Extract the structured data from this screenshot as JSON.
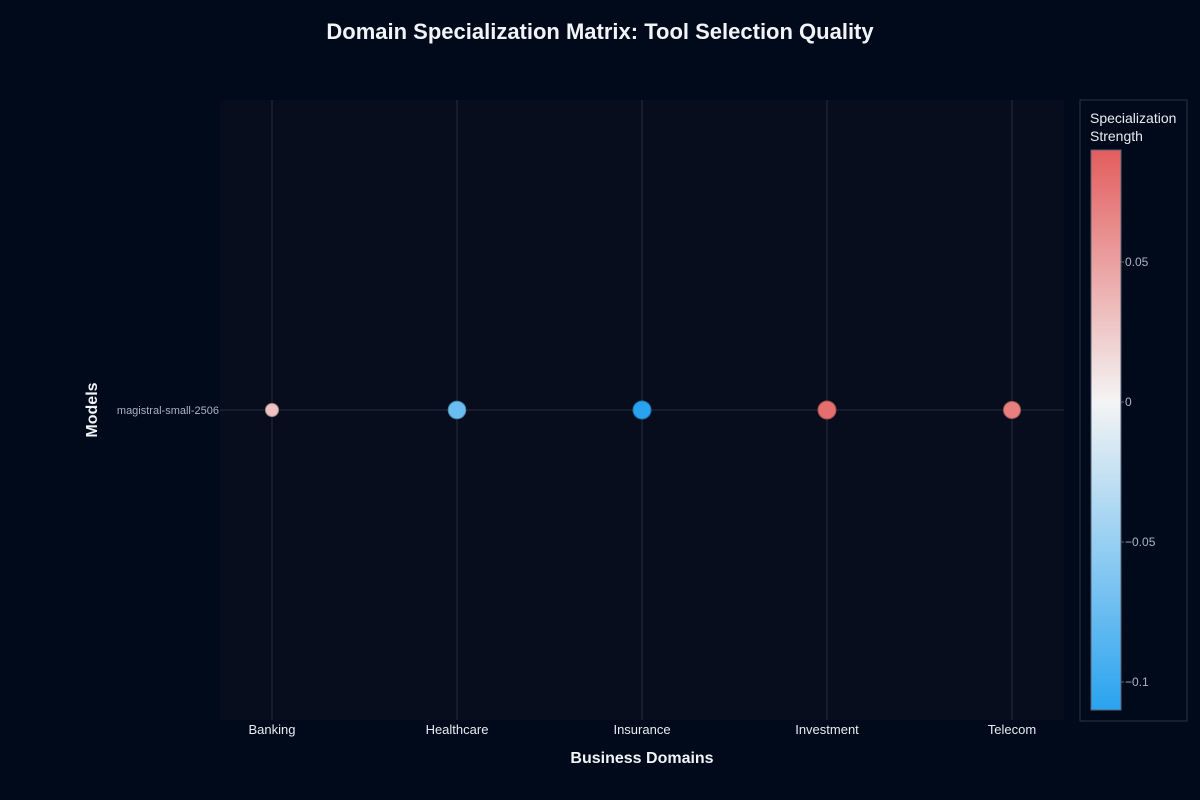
{
  "chart_data": {
    "type": "scatter",
    "title": "Domain Specialization Matrix: Tool Selection Quality",
    "xlabel": "Business Domains",
    "ylabel": "Models",
    "categories": [
      "Banking",
      "Healthcare",
      "Insurance",
      "Investment",
      "Telecom"
    ],
    "models": [
      "magistral-small-2506"
    ],
    "points": [
      {
        "domain": "Banking",
        "model": "magistral-small-2506",
        "value": 0.03
      },
      {
        "domain": "Healthcare",
        "model": "magistral-small-2506",
        "value": -0.075
      },
      {
        "domain": "Insurance",
        "model": "magistral-small-2506",
        "value": -0.11
      },
      {
        "domain": "Investment",
        "model": "magistral-small-2506",
        "value": 0.08
      },
      {
        "domain": "Telecom",
        "model": "magistral-small-2506",
        "value": 0.07
      }
    ],
    "colorbar": {
      "title_lines": [
        "Specialization",
        "Strength"
      ],
      "range": [
        -0.11,
        0.09
      ],
      "ticks": [
        0.05,
        0,
        -0.05,
        -0.1
      ],
      "tick_labels": [
        "0.05",
        "0",
        "−0.05",
        "−0.1"
      ],
      "colors": [
        "#29a3ef",
        "#ffffff",
        "#e35d5d"
      ]
    },
    "grid": true,
    "legend": "right"
  }
}
